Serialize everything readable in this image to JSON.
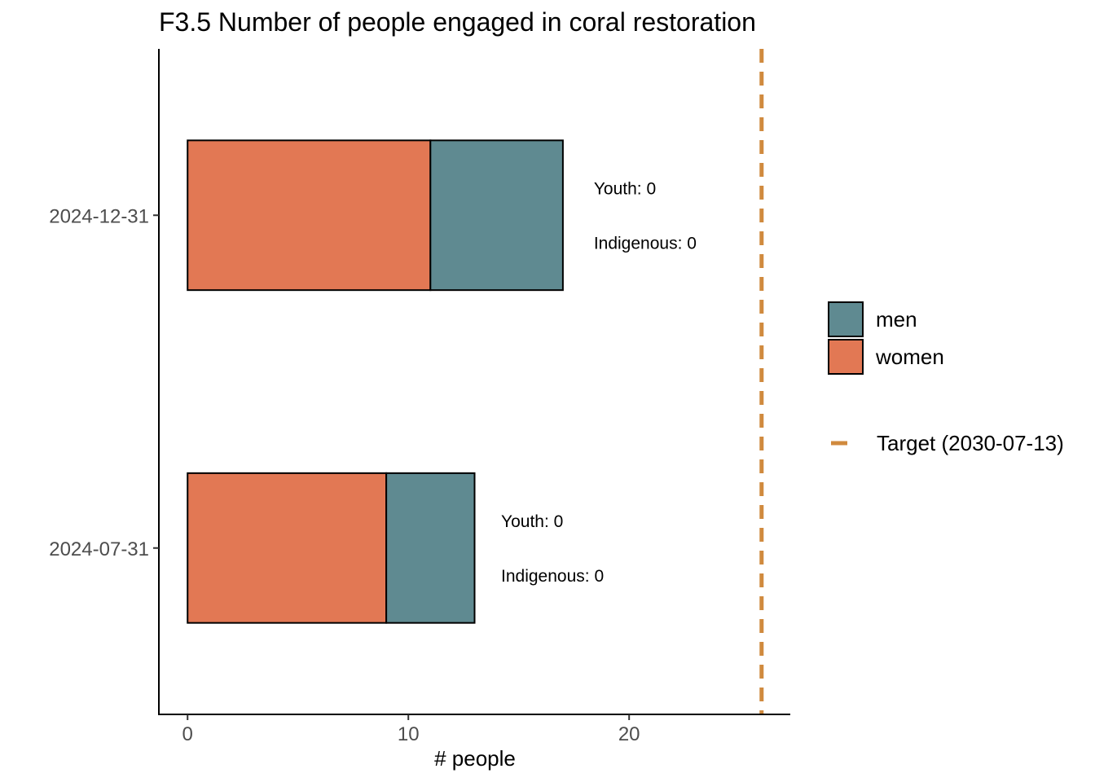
{
  "chart_data": {
    "type": "bar",
    "orientation": "horizontal",
    "stacked": true,
    "title": "F3.5 Number of people engaged in coral restoration",
    "xlabel": "# people",
    "ylabel": "",
    "xlim": [
      -1.3,
      27.3
    ],
    "x_ticks": [
      0,
      10,
      20
    ],
    "categories": [
      "2024-07-31",
      "2024-12-31"
    ],
    "series": [
      {
        "name": "women",
        "color": "#e27854",
        "values": [
          9,
          11
        ]
      },
      {
        "name": "men",
        "color": "#5f8a91",
        "values": [
          4,
          6
        ]
      }
    ],
    "annotations": [
      {
        "category": "2024-07-31",
        "x": 14.2,
        "youth": "Youth: 0",
        "indigenous": "Indigenous: 0"
      },
      {
        "category": "2024-12-31",
        "x": 18.4,
        "youth": "Youth: 0",
        "indigenous": "Indigenous: 0"
      }
    ],
    "target": {
      "label": "Target (2030-07-13)",
      "value": 26,
      "color": "#d08a3e",
      "style": "dashed"
    },
    "legend": {
      "placement": "right",
      "order": [
        "men",
        "women"
      ]
    },
    "grid": false
  }
}
